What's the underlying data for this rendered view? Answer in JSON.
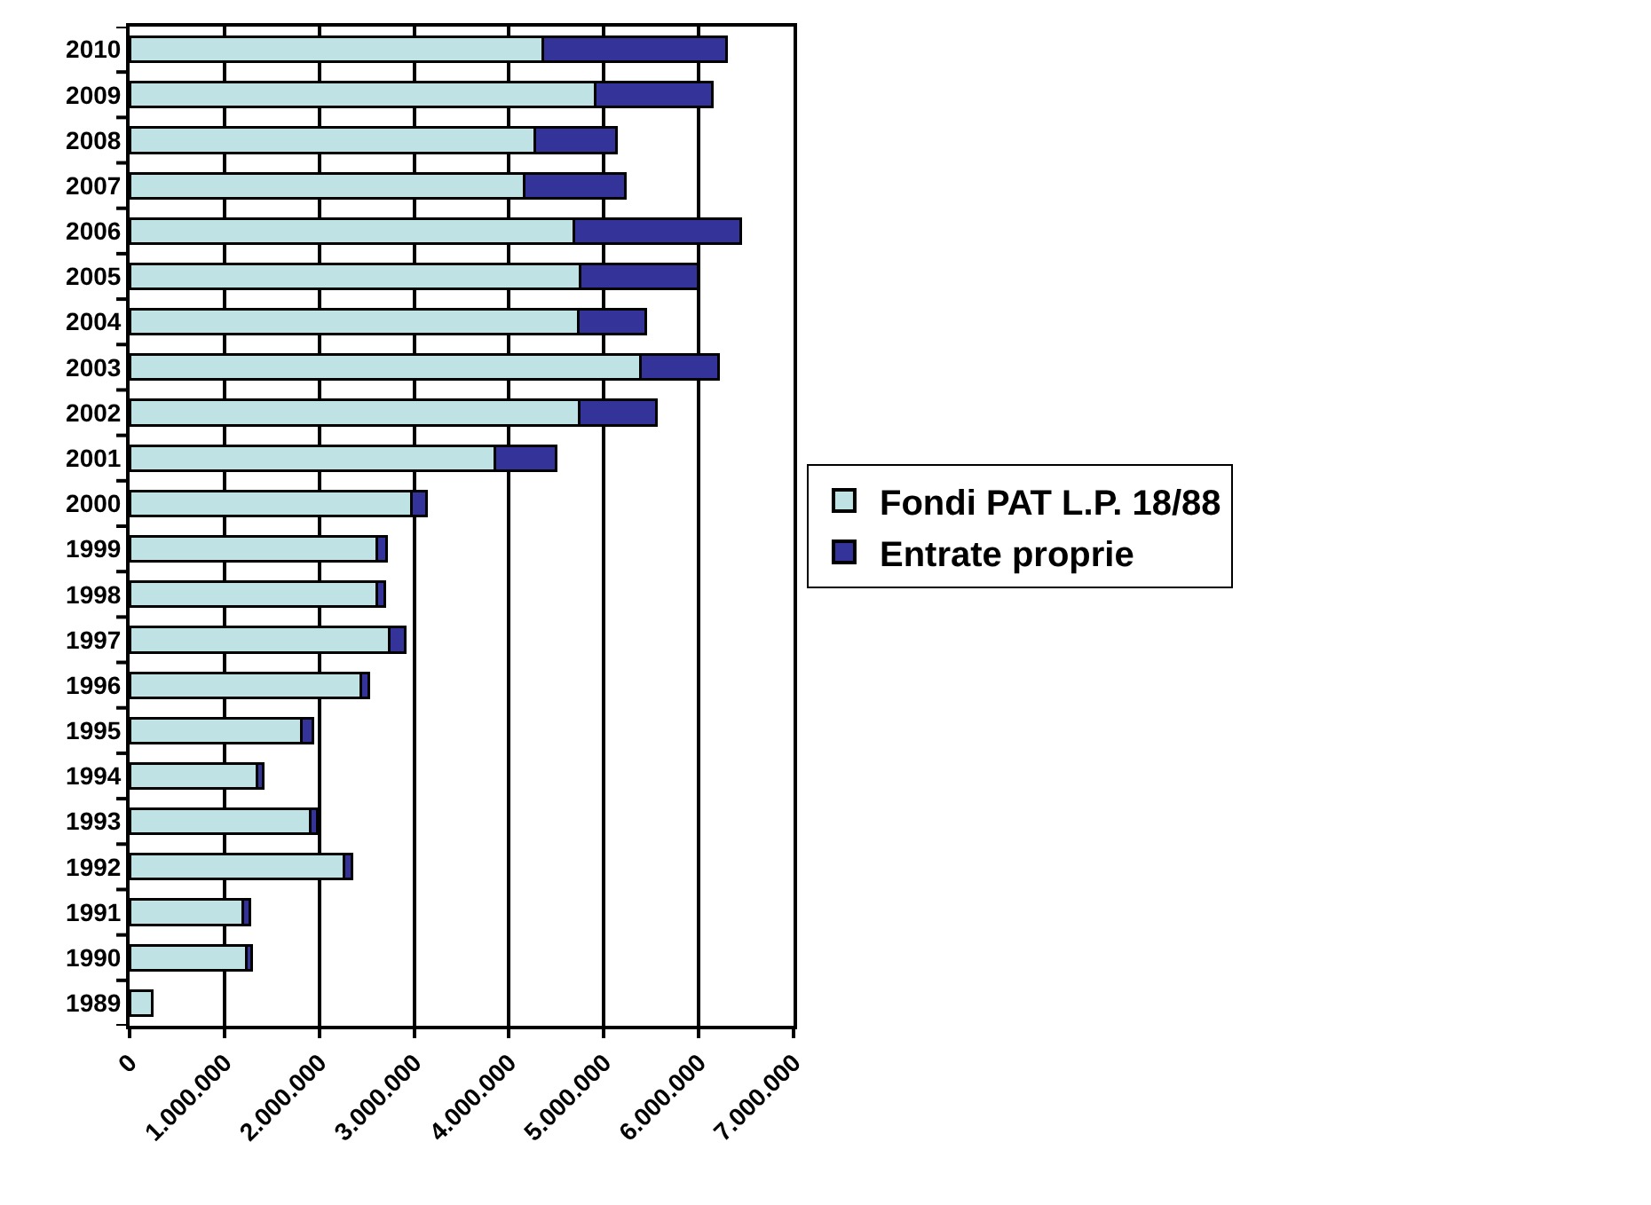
{
  "chart_data": {
    "type": "bar",
    "orientation": "horizontal",
    "stacked": true,
    "categories": [
      "2010",
      "2009",
      "2008",
      "2007",
      "2006",
      "2005",
      "2004",
      "2003",
      "2002",
      "2001",
      "2000",
      "1999",
      "1998",
      "1997",
      "1996",
      "1995",
      "1994",
      "1993",
      "1992",
      "1991",
      "1990",
      "1989"
    ],
    "series": [
      {
        "name": "Fondi PAT L.P. 18/88",
        "color": "#bfe3e5",
        "values": [
          4360000,
          4910000,
          4270000,
          4160000,
          4680000,
          4750000,
          4730000,
          5390000,
          4740000,
          3850000,
          2970000,
          2610000,
          2610000,
          2740000,
          2440000,
          1810000,
          1340000,
          1900000,
          2260000,
          1190000,
          1230000,
          240000
        ]
      },
      {
        "name": "Entrate proprie",
        "color": "#333399",
        "values": [
          1930000,
          1230000,
          860000,
          1070000,
          1760000,
          1240000,
          710000,
          820000,
          810000,
          650000,
          160000,
          100000,
          80000,
          170000,
          80000,
          120000,
          70000,
          80000,
          80000,
          80000,
          60000,
          null
        ]
      }
    ],
    "xlim": [
      0,
      7000000
    ],
    "xticks": [
      0,
      {
        "value": 1000000,
        "label": "1.000.000"
      },
      {
        "value": 2000000,
        "label": "2.000.000"
      },
      {
        "value": 3000000,
        "label": "3.000.000"
      },
      {
        "value": 4000000,
        "label": "4.000.000"
      },
      {
        "value": 5000000,
        "label": "5.000.000"
      },
      {
        "value": 6000000,
        "label": "6.000.000"
      },
      {
        "value": 7000000,
        "label": "7.000.000"
      }
    ],
    "grid": "x",
    "legend": "right"
  }
}
